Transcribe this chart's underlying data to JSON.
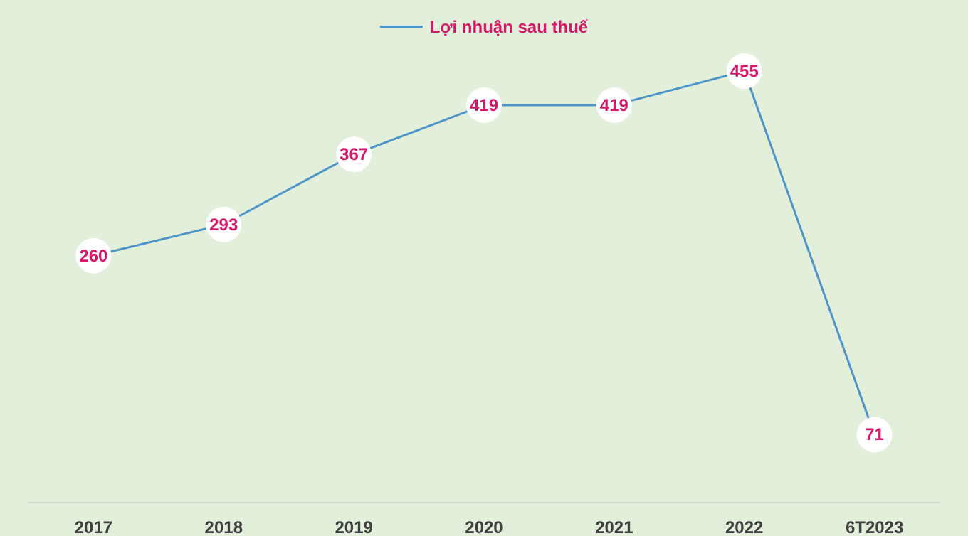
{
  "chart_data": {
    "type": "line",
    "categories": [
      "2017",
      "2018",
      "2019",
      "2020",
      "2021",
      "2022",
      "6T2023"
    ],
    "series": [
      {
        "name": "Lợi nhuận sau thuế",
        "color": "#4f94c8",
        "values": [
          260,
          293,
          367,
          419,
          419,
          455,
          71
        ]
      }
    ],
    "tick_labels": "x",
    "data_labels": true,
    "marker": "circle",
    "line_style": "solid",
    "legend": "top",
    "grid": false
  }
}
